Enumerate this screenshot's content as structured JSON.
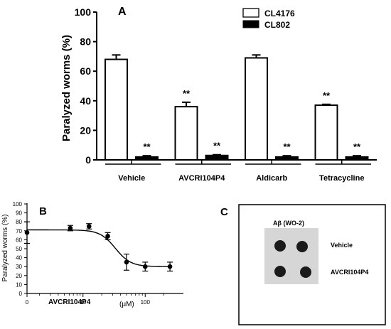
{
  "chart_data": [
    {
      "panel": "A",
      "type": "bar",
      "ylabel": "Paralyzed worms (%)",
      "ylim": [
        0,
        100
      ],
      "yticks": [
        0,
        20,
        40,
        60,
        80,
        100
      ],
      "categories": [
        "Vehicle",
        "AVCRI104P4",
        "Aldicarb",
        "Tetracycline"
      ],
      "series": [
        {
          "name": "CL4176",
          "fill": "#ffffff",
          "values": [
            68,
            36,
            69,
            37
          ],
          "errors": [
            3,
            3,
            2,
            0.6
          ],
          "annotations": [
            "",
            "**",
            "",
            "**"
          ]
        },
        {
          "name": "CL802",
          "fill": "#000000",
          "values": [
            2,
            3,
            2,
            2
          ],
          "errors": [
            0.8,
            0.5,
            0.8,
            0.8
          ],
          "annotations": [
            "**",
            "**",
            "**",
            "**"
          ]
        }
      ],
      "legend_position": "top-right"
    },
    {
      "panel": "B",
      "type": "scatter",
      "xlabel": "AVCRI104P4",
      "xunit": "(μM)",
      "ylabel": "Paralyzed worms (%)",
      "xscale": "log",
      "xtick_labels": [
        "0",
        "10",
        "100"
      ],
      "ylim": [
        0,
        100
      ],
      "yticks": [
        0,
        10,
        20,
        30,
        40,
        50,
        60,
        70,
        80,
        90,
        100
      ],
      "points": [
        {
          "x": 0,
          "y": 68,
          "err": 12
        },
        {
          "x": 6.25,
          "y": 73,
          "err": 3
        },
        {
          "x": 12.5,
          "y": 75,
          "err": 3
        },
        {
          "x": 25,
          "y": 64,
          "err": 4
        },
        {
          "x": 50,
          "y": 35,
          "err": 9
        },
        {
          "x": 100,
          "y": 30,
          "err": 5
        },
        {
          "x": 250,
          "y": 30,
          "err": 5
        }
      ],
      "fit_top": 71,
      "fit_bottom": 30,
      "fit_log_ec50": 1.52,
      "fit_hill": 3.5
    }
  ],
  "panel_c": {
    "label": "C",
    "column_label": "Aβ (WO-2)",
    "rows": [
      "Vehicle",
      "AVCRI104P4"
    ]
  }
}
